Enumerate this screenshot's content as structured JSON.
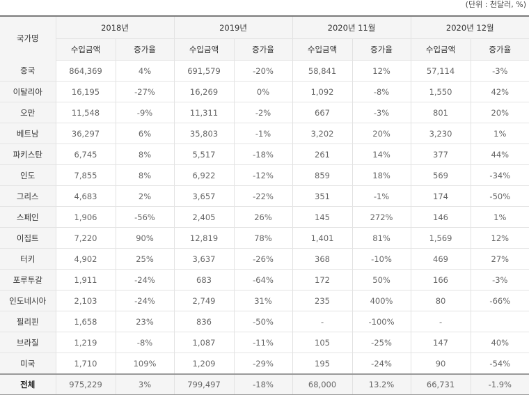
{
  "unit_note": "(단위 : 천달러, %)",
  "header": {
    "country_label": "국가명",
    "periods": [
      "2018년",
      "2019년",
      "2020년 11월",
      "2020년 12월"
    ],
    "amount_label": "수입금액",
    "growth_label": "증가율"
  },
  "rows": [
    {
      "country": "중국",
      "v": [
        "864,369",
        "4%",
        "691,579",
        "-20%",
        "58,841",
        "12%",
        "57,114",
        "-3%"
      ]
    },
    {
      "country": "이탈리아",
      "v": [
        "16,195",
        "-27%",
        "16,269",
        "0%",
        "1,092",
        "-8%",
        "1,550",
        "42%"
      ]
    },
    {
      "country": "오만",
      "v": [
        "11,548",
        "-9%",
        "11,311",
        "-2%",
        "667",
        "-3%",
        "801",
        "20%"
      ]
    },
    {
      "country": "베트남",
      "v": [
        "36,297",
        "6%",
        "35,803",
        "-1%",
        "3,202",
        "20%",
        "3,230",
        "1%"
      ]
    },
    {
      "country": "파키스탄",
      "v": [
        "6,745",
        "8%",
        "5,517",
        "-18%",
        "261",
        "14%",
        "377",
        "44%"
      ]
    },
    {
      "country": "인도",
      "v": [
        "7,855",
        "8%",
        "6,922",
        "-12%",
        "859",
        "18%",
        "569",
        "-34%"
      ]
    },
    {
      "country": "그리스",
      "v": [
        "4,683",
        "2%",
        "3,657",
        "-22%",
        "351",
        "-1%",
        "174",
        "-50%"
      ]
    },
    {
      "country": "스페인",
      "v": [
        "1,906",
        "-56%",
        "2,405",
        "26%",
        "145",
        "272%",
        "146",
        "1%"
      ]
    },
    {
      "country": "이집트",
      "v": [
        "7,220",
        "90%",
        "12,819",
        "78%",
        "1,401",
        "81%",
        "1,569",
        "12%"
      ]
    },
    {
      "country": "터키",
      "v": [
        "4,902",
        "25%",
        "3,637",
        "-26%",
        "368",
        "-10%",
        "469",
        "27%"
      ]
    },
    {
      "country": "포루투갈",
      "v": [
        "1,911",
        "-24%",
        "683",
        "-64%",
        "172",
        "50%",
        "166",
        "-3%"
      ]
    },
    {
      "country": "인도네시아",
      "v": [
        "2,103",
        "-24%",
        "2,749",
        "31%",
        "235",
        "400%",
        "80",
        "-66%"
      ]
    },
    {
      "country": "필리핀",
      "v": [
        "1,658",
        "23%",
        "836",
        "-50%",
        "-",
        "-100%",
        "-",
        ""
      ]
    },
    {
      "country": "브라질",
      "v": [
        "1,219",
        "-8%",
        "1,087",
        "-11%",
        "105",
        "-25%",
        "147",
        "40%"
      ]
    },
    {
      "country": "미국",
      "v": [
        "1,710",
        "109%",
        "1,209",
        "-29%",
        "195",
        "-24%",
        "90",
        "-54%"
      ]
    }
  ],
  "total": {
    "country": "전체",
    "v": [
      "975,229",
      "3%",
      "799,497",
      "-18%",
      "68,000",
      "13.2%",
      "66,731",
      "-1.9%"
    ]
  }
}
